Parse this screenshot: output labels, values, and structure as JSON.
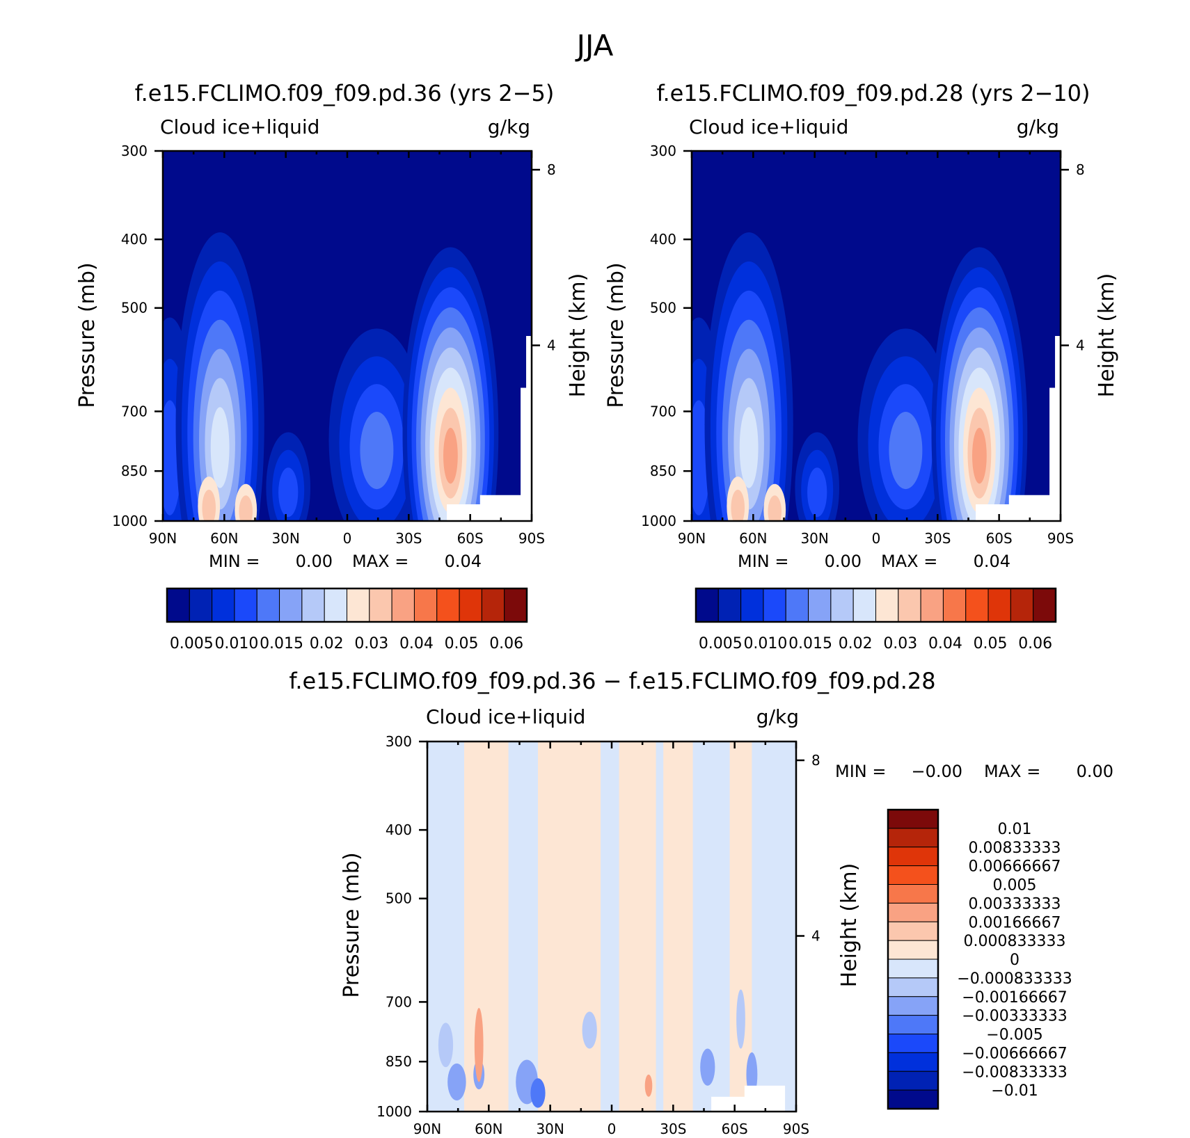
{
  "figure_title": "JJA",
  "colors": {
    "field_palette": [
      "#000a8c",
      "#0022b4",
      "#0030dc",
      "#1b49fa",
      "#4e78f8",
      "#86a3f7",
      "#b5c9f8",
      "#d8e6fb",
      "#fde6d4",
      "#fbc7ae",
      "#f9a283",
      "#f7774a",
      "#f4511c",
      "#df3509",
      "#b5250a",
      "#7c0a0a"
    ],
    "diff_palette": [
      "#000a8c",
      "#0022b4",
      "#0030dc",
      "#1b49fa",
      "#4e78f8",
      "#86a3f7",
      "#b5c9f8",
      "#d8e6fb",
      "#fde6d4",
      "#fbc7ae",
      "#f9a283",
      "#f7774a",
      "#f4511c",
      "#df3509",
      "#b5250a",
      "#7c0a0a"
    ]
  },
  "chart_data": [
    {
      "type": "heatmap",
      "title": "f.e15.FCLIMO.f09_f09.pd.36 (yrs 2−5)",
      "variable_label": "Cloud ice+liquid",
      "units": "g/kg",
      "ylabel": "Pressure (mb)",
      "ylabel_right": "Height (km)",
      "x_ticks": [
        "90N",
        "60N",
        "30N",
        "0",
        "30S",
        "60S",
        "90S"
      ],
      "y_ticks": [
        "300",
        "400",
        "500",
        "700",
        "850",
        "1000"
      ],
      "y_right_ticks": [
        "8",
        "4"
      ],
      "xlim": [
        90,
        -90
      ],
      "ylim": [
        1000,
        300
      ],
      "log_pressure": true,
      "min_label": "MIN =",
      "min_value": "0.00",
      "max_label": "MAX =",
      "max_value": "0.04",
      "colorbar_labels": [
        "0.005",
        "0.010",
        "0.015",
        "0.02",
        "0.03",
        "0.04",
        "0.05",
        "0.06"
      ],
      "colorbar_levels": 16
    },
    {
      "type": "heatmap",
      "title": "f.e15.FCLIMO.f09_f09.pd.28 (yrs 2−10)",
      "variable_label": "Cloud ice+liquid",
      "units": "g/kg",
      "ylabel": "Pressure (mb)",
      "ylabel_right": "Height (km)",
      "x_ticks": [
        "90N",
        "60N",
        "30N",
        "0",
        "30S",
        "60S",
        "90S"
      ],
      "y_ticks": [
        "300",
        "400",
        "500",
        "700",
        "850",
        "1000"
      ],
      "y_right_ticks": [
        "8",
        "4"
      ],
      "xlim": [
        90,
        -90
      ],
      "ylim": [
        1000,
        300
      ],
      "log_pressure": true,
      "min_label": "MIN =",
      "min_value": "0.00",
      "max_label": "MAX =",
      "max_value": "0.04",
      "colorbar_labels": [
        "0.005",
        "0.010",
        "0.015",
        "0.02",
        "0.03",
        "0.04",
        "0.05",
        "0.06"
      ],
      "colorbar_levels": 16
    },
    {
      "type": "heatmap",
      "title": "f.e15.FCLIMO.f09_f09.pd.36 − f.e15.FCLIMO.f09_f09.pd.28",
      "variable_label": "Cloud ice+liquid",
      "units": "g/kg",
      "ylabel": "Pressure (mb)",
      "ylabel_right": "Height (km)",
      "x_ticks": [
        "90N",
        "60N",
        "30N",
        "0",
        "30S",
        "60S",
        "90S"
      ],
      "y_ticks": [
        "300",
        "400",
        "500",
        "700",
        "850",
        "1000"
      ],
      "y_right_ticks": [
        "8",
        "4"
      ],
      "xlim": [
        90,
        -90
      ],
      "ylim": [
        1000,
        300
      ],
      "log_pressure": true,
      "min_label": "MIN =",
      "min_value": "−0.00",
      "max_label": "MAX =",
      "max_value": "0.00",
      "colorbar_labels": [
        "0.01",
        "0.00833333",
        "0.00666667",
        "0.005",
        "0.00333333",
        "0.00166667",
        "0.000833333",
        "0",
        "−0.000833333",
        "−0.00166667",
        "−0.00333333",
        "−0.005",
        "−0.00666667",
        "−0.00833333",
        "−0.01"
      ],
      "colorbar_levels": 16
    }
  ]
}
